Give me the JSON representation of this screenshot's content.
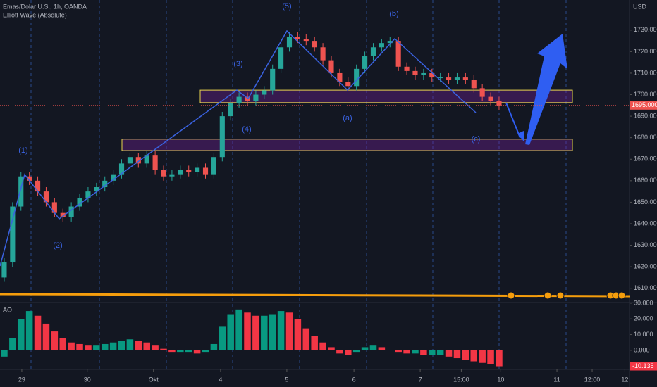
{
  "chart_data": {
    "type": "candlestick",
    "title": "Emas/Dolar U.S., 1h, OANDA",
    "subtitle": "Elliott Wave (Absolute)",
    "currency": "USD",
    "open": [
      1615,
      1622,
      1648,
      1662,
      1660,
      1655,
      1650,
      1645,
      1643,
      1648,
      1652,
      1655,
      1657,
      1660,
      1663,
      1668,
      1671,
      1668,
      1672,
      1665,
      1662,
      1663,
      1665,
      1664,
      1666,
      1663,
      1671,
      1690,
      1696,
      1699,
      1697,
      1700,
      1702,
      1712,
      1722,
      1727,
      1726,
      1725,
      1722,
      1716,
      1710,
      1706,
      1704,
      1712,
      1718,
      1722,
      1724,
      1725,
      1713,
      1711,
      1709,
      1710,
      1708,
      1708,
      1707,
      1708,
      1707,
      1703,
      1699,
      1697
    ],
    "high": [
      1624,
      1650,
      1664,
      1664,
      1662,
      1657,
      1652,
      1647,
      1650,
      1654,
      1657,
      1659,
      1662,
      1665,
      1670,
      1673,
      1673,
      1674,
      1674,
      1667,
      1665,
      1667,
      1667,
      1668,
      1668,
      1673,
      1692,
      1698,
      1701,
      1701,
      1702,
      1704,
      1714,
      1724,
      1729,
      1729,
      1728,
      1727,
      1724,
      1718,
      1712,
      1708,
      1714,
      1720,
      1724,
      1726,
      1727,
      1727,
      1715,
      1713,
      1712,
      1712,
      1710,
      1710,
      1710,
      1710,
      1709,
      1705,
      1701,
      1699
    ],
    "low": [
      1613,
      1620,
      1646,
      1658,
      1653,
      1648,
      1643,
      1641,
      1641,
      1646,
      1650,
      1653,
      1655,
      1658,
      1661,
      1666,
      1666,
      1666,
      1663,
      1660,
      1660,
      1661,
      1662,
      1662,
      1661,
      1661,
      1669,
      1688,
      1694,
      1695,
      1695,
      1698,
      1700,
      1710,
      1720,
      1724,
      1723,
      1720,
      1714,
      1708,
      1704,
      1702,
      1702,
      1710,
      1716,
      1720,
      1722,
      1711,
      1709,
      1707,
      1707,
      1706,
      1706,
      1705,
      1705,
      1705,
      1701,
      1697,
      1695,
      1693
    ],
    "close": [
      1622,
      1648,
      1662,
      1660,
      1655,
      1650,
      1645,
      1643,
      1648,
      1652,
      1655,
      1657,
      1660,
      1663,
      1668,
      1671,
      1668,
      1672,
      1665,
      1662,
      1663,
      1665,
      1664,
      1666,
      1663,
      1671,
      1690,
      1696,
      1699,
      1697,
      1700,
      1702,
      1712,
      1722,
      1727,
      1726,
      1725,
      1722,
      1716,
      1710,
      1706,
      1704,
      1712,
      1718,
      1722,
      1724,
      1725,
      1713,
      1711,
      1709,
      1710,
      1708,
      1708,
      1707,
      1708,
      1707,
      1703,
      1699,
      1697,
      1695
    ],
    "up_color": "#26a69a",
    "down_color": "#ef5350",
    "last_price": {
      "value": 1695,
      "label": "1695.000"
    },
    "xlim": [
      -0.5,
      74.3
    ],
    "xticks": [
      {
        "value": 2.1,
        "label": "29"
      },
      {
        "value": 9.9,
        "label": "30"
      },
      {
        "value": 17.8,
        "label": "Okt"
      },
      {
        "value": 25.8,
        "label": "4"
      },
      {
        "value": 33.7,
        "label": "5"
      },
      {
        "value": 41.7,
        "label": "6"
      },
      {
        "value": 49.6,
        "label": "7"
      },
      {
        "value": 54.5,
        "label": "15:00"
      },
      {
        "value": 59.2,
        "label": "10"
      },
      {
        "value": 65.9,
        "label": "11"
      },
      {
        "value": 70.1,
        "label": "12:00"
      },
      {
        "value": 74,
        "label": "12"
      }
    ],
    "ylim": [
      1605,
      1744
    ],
    "yticks": [
      {
        "value": 1610,
        "label": "1610.000"
      },
      {
        "value": 1620,
        "label": "1620.000"
      },
      {
        "value": 1630,
        "label": "1630.000"
      },
      {
        "value": 1640,
        "label": "1640.000"
      },
      {
        "value": 1650,
        "label": "1650.000"
      },
      {
        "value": 1660,
        "label": "1660.000"
      },
      {
        "value": 1670,
        "label": "1670.000"
      },
      {
        "value": 1680,
        "label": "1680.000"
      },
      {
        "value": 1690,
        "label": "1690.000"
      },
      {
        "value": 1700,
        "label": "1700.000"
      },
      {
        "value": 1710,
        "label": "1710.000"
      },
      {
        "value": 1720,
        "label": "1720.000"
      },
      {
        "value": 1730,
        "label": "1730.000"
      }
    ],
    "zones": [
      {
        "low": 1696.3,
        "high": 1702.1
      },
      {
        "low": 1674.0,
        "high": 1679.3
      }
    ],
    "wave_labels": [
      "(1)",
      "(2)",
      "(3)",
      "(4)",
      "(5)",
      "(a)",
      "(b)",
      "(c)"
    ],
    "indicator": {
      "name": "AO",
      "values": [
        -4,
        8,
        20,
        25,
        22,
        17,
        12,
        8,
        5,
        4,
        3,
        3,
        4,
        5,
        6,
        7,
        6,
        5,
        3,
        1,
        -1,
        -1,
        -1,
        -2,
        -1,
        4,
        15,
        23,
        26,
        24,
        22,
        22,
        23,
        25,
        24,
        20,
        14,
        9,
        5,
        2,
        -2,
        -3,
        -1,
        2,
        3,
        2,
        0,
        -1,
        -2,
        -2,
        -3,
        -3,
        -3,
        -4,
        -5,
        -6,
        -7,
        -8,
        -9,
        -10.135
      ],
      "up_color": "#089981",
      "down_color": "#f23645",
      "ylim": [
        -10.8,
        31.3
      ],
      "yticks": [
        {
          "value": 0,
          "label": "0.000"
        },
        {
          "value": 10,
          "label": "10.000"
        },
        {
          "value": 20,
          "label": "20.000"
        },
        {
          "value": 30,
          "label": "30.000"
        }
      ]
    }
  }
}
